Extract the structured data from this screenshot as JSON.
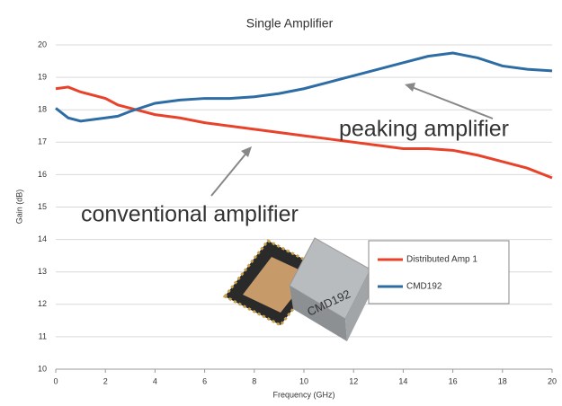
{
  "chart_data": {
    "type": "line",
    "title": "Single Amplifier",
    "x_label": "Frequency (GHz)",
    "y_label": "Gain (dB)",
    "x": [
      0,
      0.5,
      1,
      2,
      2.5,
      3,
      4,
      5,
      6,
      7,
      8,
      9,
      10,
      11,
      12,
      13,
      14,
      15,
      16,
      17,
      18,
      19,
      20
    ],
    "series": [
      {
        "name": "Distributed Amp 1",
        "color": "#e8432a",
        "values": [
          18.65,
          18.7,
          18.55,
          18.35,
          18.15,
          18.05,
          17.85,
          17.75,
          17.6,
          17.5,
          17.4,
          17.3,
          17.2,
          17.1,
          17.0,
          16.9,
          16.8,
          16.8,
          16.75,
          16.6,
          16.4,
          16.2,
          15.9
        ]
      },
      {
        "name": "CMD192",
        "color": "#2e6da4",
        "values": [
          18.05,
          17.75,
          17.65,
          17.75,
          17.8,
          17.95,
          18.2,
          18.3,
          18.35,
          18.35,
          18.4,
          18.5,
          18.65,
          18.85,
          19.05,
          19.25,
          19.45,
          19.65,
          19.75,
          19.6,
          19.35,
          19.25,
          19.2
        ]
      }
    ],
    "xlim": [
      0,
      20
    ],
    "xticks": [
      0,
      2,
      4,
      6,
      8,
      10,
      12,
      14,
      16,
      18,
      20
    ],
    "ylim": [
      10,
      20
    ],
    "yticks": [
      10,
      11,
      12,
      13,
      14,
      15,
      16,
      17,
      18,
      19,
      20
    ],
    "grid": true,
    "annotations": [
      "peaking amplifier",
      "conventional amplifier"
    ],
    "chip_label": "CMD192"
  }
}
